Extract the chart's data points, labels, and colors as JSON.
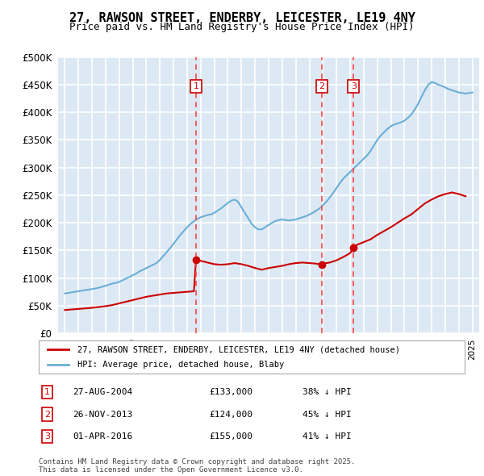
{
  "title_line1": "27, RAWSON STREET, ENDERBY, LEICESTER, LE19 4NY",
  "title_line2": "Price paid vs. HM Land Registry's House Price Index (HPI)",
  "background_color": "#dce9f5",
  "plot_bg_color": "#dce9f5",
  "grid_color": "#ffffff",
  "ylim": [
    0,
    500000
  ],
  "yticks": [
    0,
    50000,
    100000,
    150000,
    200000,
    250000,
    300000,
    350000,
    400000,
    450000,
    500000
  ],
  "xlim_start": 1994.5,
  "xlim_end": 2025.5,
  "hpi_color": "#6baed6",
  "price_color": "#cc0000",
  "sale_marker_color": "#cc0000",
  "vline_color": "#ff4444",
  "box_color": "#cc0000",
  "legend_label_price": "27, RAWSON STREET, ENDERBY, LEICESTER, LE19 4NY (detached house)",
  "legend_label_hpi": "HPI: Average price, detached house, Blaby",
  "sales": [
    {
      "num": 1,
      "date": "27-AUG-2004",
      "price": 133000,
      "pct": "38%",
      "x": 2004.65
    },
    {
      "num": 2,
      "date": "26-NOV-2013",
      "price": 124000,
      "pct": "45%",
      "x": 2013.9
    },
    {
      "num": 3,
      "date": "01-APR-2016",
      "price": 155000,
      "pct": "41%",
      "x": 2016.25
    }
  ],
  "footnote": "Contains HM Land Registry data © Crown copyright and database right 2025.\nThis data is licensed under the Open Government Licence v3.0.",
  "hpi_years": [
    1995,
    1995.25,
    1995.5,
    1995.75,
    1996,
    1996.25,
    1996.5,
    1996.75,
    1997,
    1997.25,
    1997.5,
    1997.75,
    1998,
    1998.25,
    1998.5,
    1998.75,
    1999,
    1999.25,
    1999.5,
    1999.75,
    2000,
    2000.25,
    2000.5,
    2000.75,
    2001,
    2001.25,
    2001.5,
    2001.75,
    2002,
    2002.25,
    2002.5,
    2002.75,
    2003,
    2003.25,
    2003.5,
    2003.75,
    2004,
    2004.25,
    2004.5,
    2004.75,
    2005,
    2005.25,
    2005.5,
    2005.75,
    2006,
    2006.25,
    2006.5,
    2006.75,
    2007,
    2007.25,
    2007.5,
    2007.75,
    2008,
    2008.25,
    2008.5,
    2008.75,
    2009,
    2009.25,
    2009.5,
    2009.75,
    2010,
    2010.25,
    2010.5,
    2010.75,
    2011,
    2011.25,
    2011.5,
    2011.75,
    2012,
    2012.25,
    2012.5,
    2012.75,
    2013,
    2013.25,
    2013.5,
    2013.75,
    2014,
    2014.25,
    2014.5,
    2014.75,
    2015,
    2015.25,
    2015.5,
    2015.75,
    2016,
    2016.25,
    2016.5,
    2016.75,
    2017,
    2017.25,
    2017.5,
    2017.75,
    2018,
    2018.25,
    2018.5,
    2018.75,
    2019,
    2019.25,
    2019.5,
    2019.75,
    2020,
    2020.25,
    2020.5,
    2020.75,
    2021,
    2021.25,
    2021.5,
    2021.75,
    2022,
    2022.25,
    2022.5,
    2022.75,
    2023,
    2023.25,
    2023.5,
    2023.75,
    2024,
    2024.25,
    2024.5,
    2024.75,
    2025
  ],
  "hpi_values": [
    72000,
    73000,
    74000,
    75000,
    76000,
    77000,
    78000,
    79000,
    80000,
    81000,
    82500,
    84000,
    86000,
    88000,
    90000,
    91000,
    93000,
    96000,
    99000,
    102000,
    105000,
    108000,
    112000,
    115000,
    118000,
    121000,
    124000,
    127000,
    133000,
    140000,
    147000,
    154000,
    162000,
    170000,
    178000,
    185000,
    192000,
    198000,
    203000,
    207000,
    210000,
    212000,
    214000,
    215000,
    218000,
    222000,
    226000,
    231000,
    236000,
    240000,
    242000,
    238000,
    228000,
    218000,
    208000,
    198000,
    192000,
    188000,
    188000,
    192000,
    196000,
    200000,
    203000,
    205000,
    206000,
    205000,
    204000,
    205000,
    206000,
    208000,
    210000,
    212000,
    215000,
    218000,
    222000,
    226000,
    232000,
    238000,
    246000,
    254000,
    263000,
    272000,
    280000,
    286000,
    292000,
    298000,
    304000,
    310000,
    316000,
    322000,
    330000,
    340000,
    350000,
    358000,
    364000,
    370000,
    375000,
    378000,
    380000,
    382000,
    385000,
    390000,
    396000,
    405000,
    415000,
    428000,
    440000,
    450000,
    455000,
    453000,
    450000,
    448000,
    445000,
    442000,
    440000,
    438000,
    436000,
    435000,
    434000,
    435000,
    436000
  ],
  "price_years": [
    1995,
    1995.5,
    1996,
    1996.5,
    1997,
    1997.5,
    1998,
    1998.5,
    1999,
    1999.5,
    2000,
    2000.5,
    2001,
    2001.5,
    2002,
    2002.5,
    2003,
    2003.5,
    2004,
    2004.5,
    2004.65,
    2005,
    2005.5,
    2006,
    2006.5,
    2007,
    2007.5,
    2008,
    2008.5,
    2009,
    2009.5,
    2010,
    2010.5,
    2011,
    2011.5,
    2012,
    2012.5,
    2013,
    2013.5,
    2013.9,
    2014,
    2014.5,
    2015,
    2015.5,
    2016,
    2016.25,
    2016.5,
    2017,
    2017.5,
    2018,
    2018.5,
    2019,
    2019.5,
    2020,
    2020.5,
    2021,
    2021.5,
    2022,
    2022.5,
    2023,
    2023.5,
    2024,
    2024.5
  ],
  "price_values": [
    42000,
    43000,
    44000,
    45000,
    46000,
    47500,
    49000,
    51000,
    54000,
    57000,
    60000,
    63000,
    66000,
    68000,
    70000,
    72000,
    73000,
    74000,
    75000,
    76000,
    133000,
    131000,
    128000,
    125000,
    124000,
    125000,
    127000,
    125000,
    122000,
    118000,
    115000,
    118000,
    120000,
    122000,
    125000,
    127000,
    128000,
    127000,
    126000,
    124000,
    126000,
    128000,
    132000,
    138000,
    145000,
    155000,
    160000,
    165000,
    170000,
    178000,
    185000,
    192000,
    200000,
    208000,
    215000,
    225000,
    235000,
    242000,
    248000,
    252000,
    255000,
    252000,
    248000
  ]
}
